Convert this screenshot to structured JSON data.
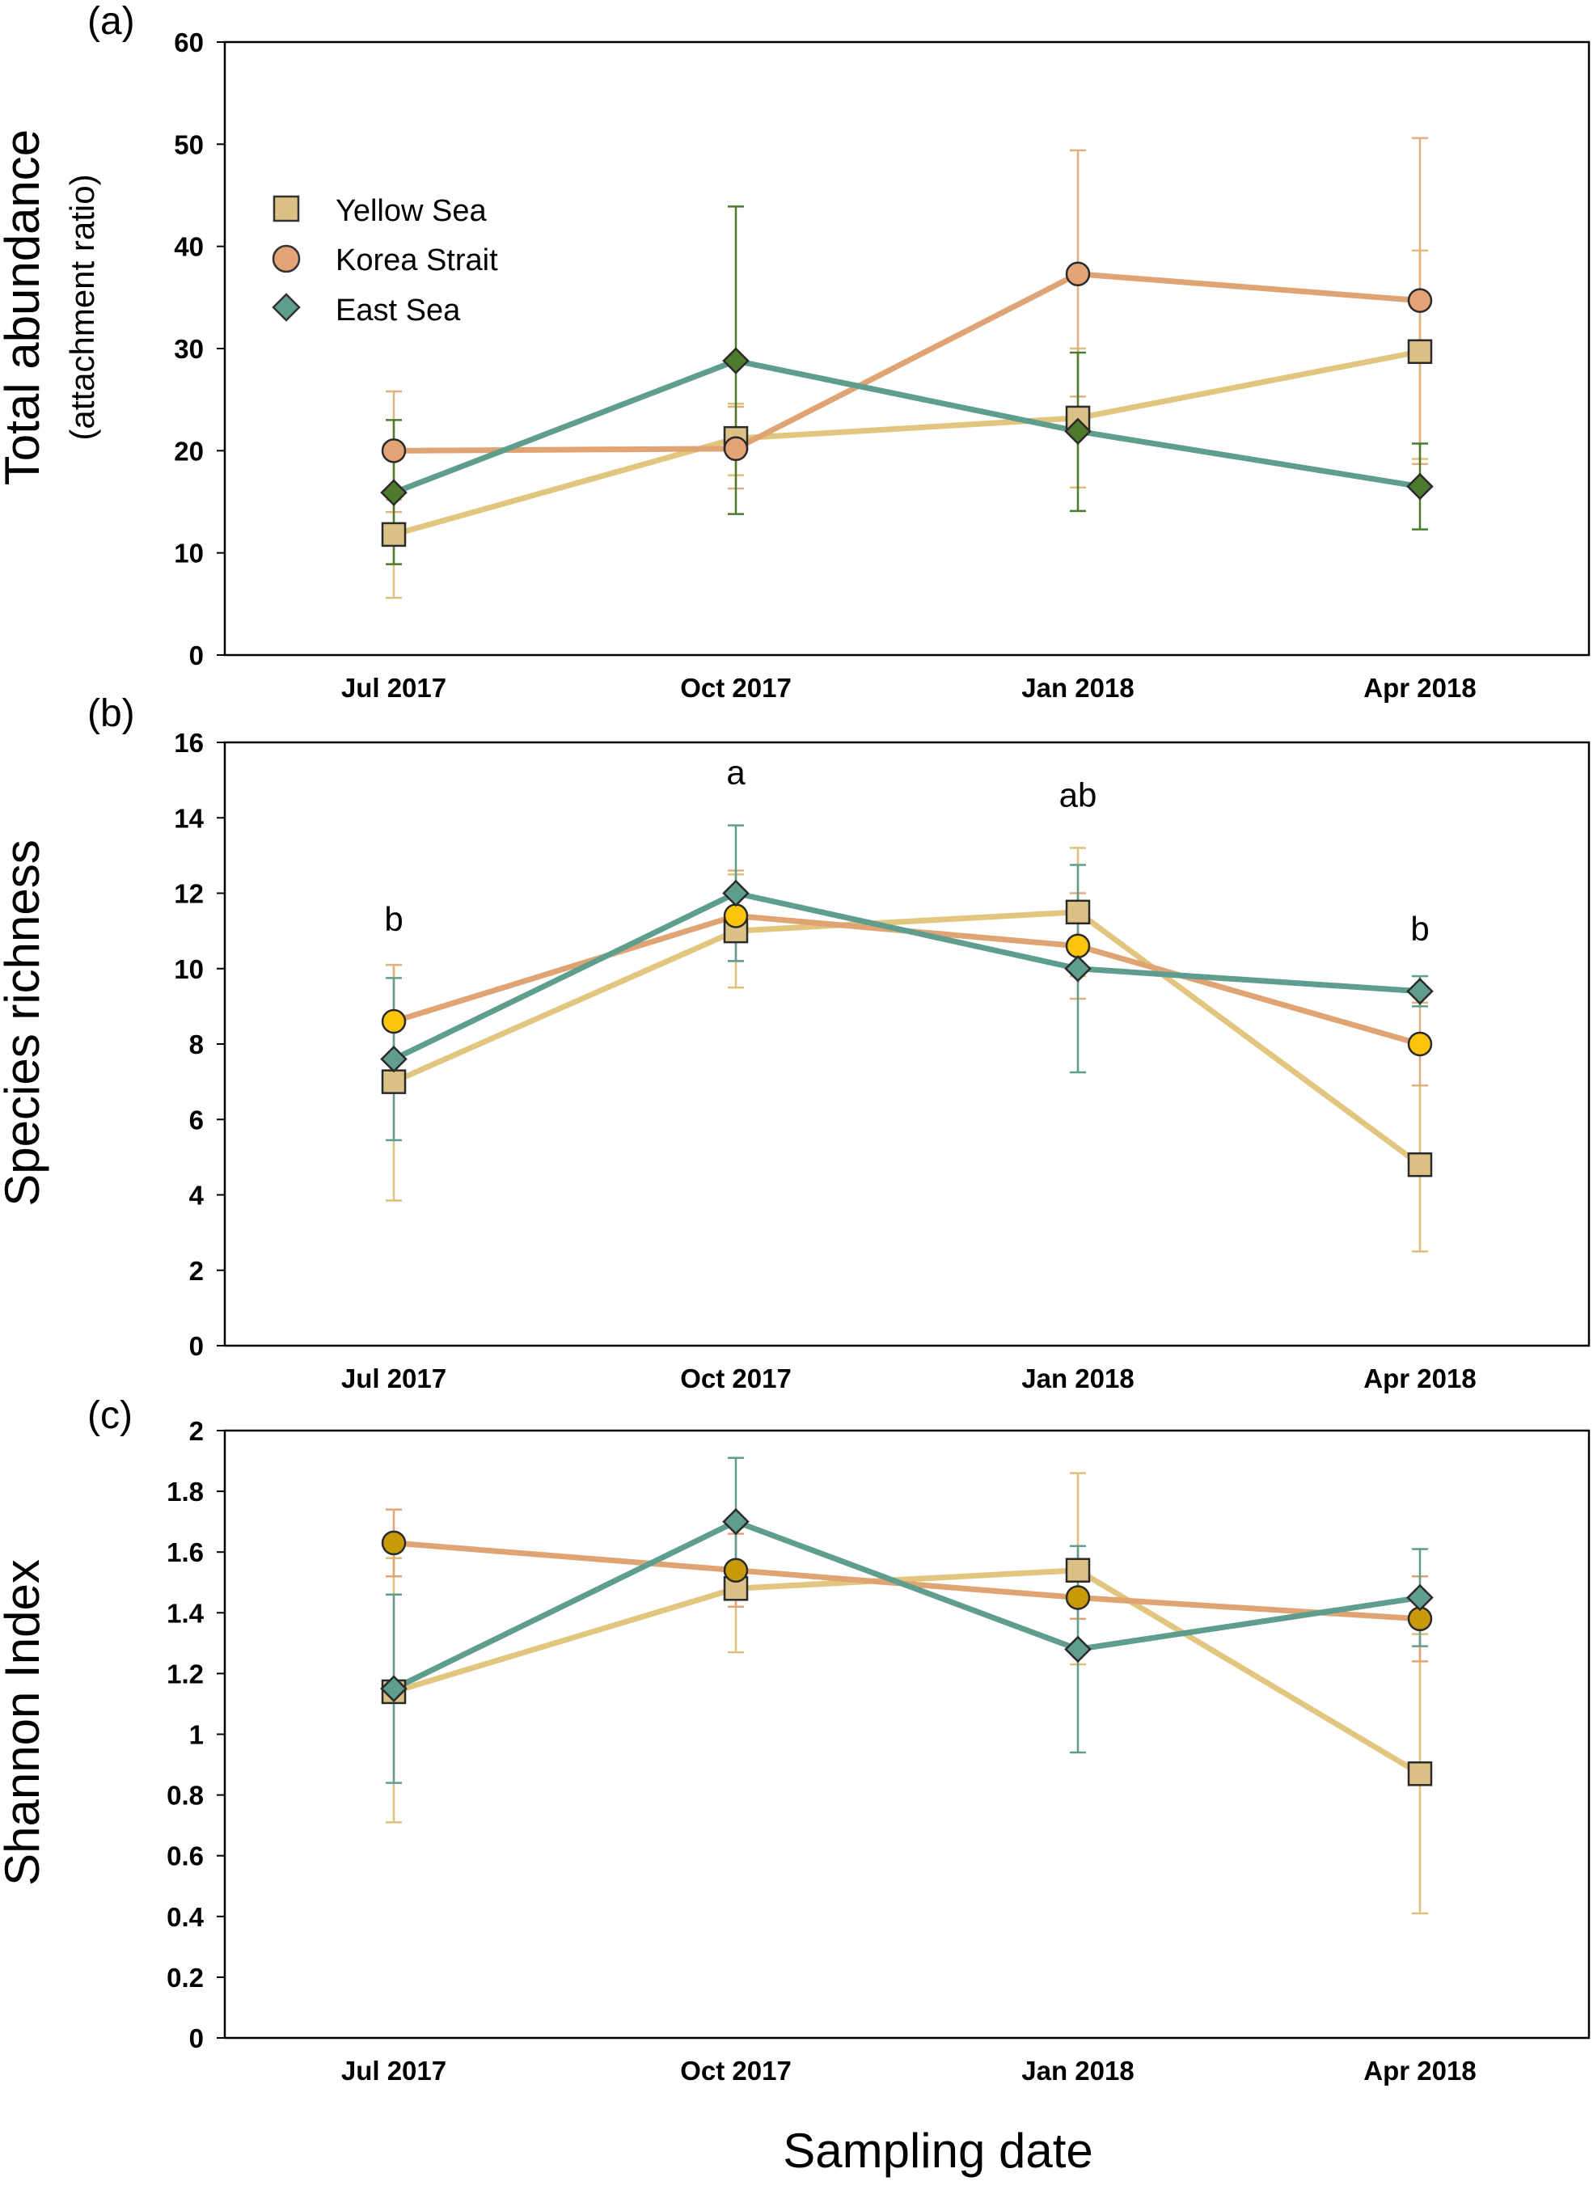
{
  "figure": {
    "x_title": "Sampling date",
    "series_colors": {
      "Yellow Sea": "#e2c57f",
      "Korea Strait": "#e0a474",
      "East Sea": "#5f9e8f"
    },
    "legend": [
      "Yellow Sea",
      "Korea Strait",
      "East Sea"
    ]
  },
  "chart_data": [
    {
      "type": "line",
      "panel_label": "(a)",
      "ylabel": "Total abundance",
      "ylabel_sub": "(attachment ratio)",
      "categories": [
        "Jul 2017",
        "Oct 2017",
        "Jan 2018",
        "Apr 2018"
      ],
      "ylim": [
        0,
        60
      ],
      "yticks": [
        "0",
        "10",
        "20",
        "30",
        "40",
        "50",
        "60"
      ],
      "legend_position": "top-left",
      "series": [
        {
          "name": "Yellow Sea",
          "marker": "square",
          "line_color": "#e2c57f",
          "marker_color": "#dcc187",
          "error_color": "#dcbf7a",
          "values": [
            11.8,
            21.2,
            23.2,
            29.7
          ],
          "err_low": [
            5.6,
            17.6,
            16.4,
            19.2
          ],
          "err_high": [
            15.2,
            24.6,
            30.0,
            39.6
          ]
        },
        {
          "name": "Korea Strait",
          "marker": "circle",
          "line_color": "#e0a474",
          "marker_color": "#e3a376",
          "error_color": "#e0b080",
          "values": [
            20.0,
            20.2,
            37.3,
            34.7
          ],
          "err_low": [
            14.0,
            16.3,
            25.3,
            18.7
          ],
          "err_high": [
            25.8,
            24.3,
            49.4,
            50.6
          ]
        },
        {
          "name": "East Sea",
          "marker": "diamond",
          "line_color": "#5f9e8f",
          "marker_color": "#4d7a2c",
          "error_color": "#4d7a2c",
          "values": [
            15.9,
            28.8,
            21.9,
            16.5
          ],
          "err_low": [
            8.9,
            13.8,
            14.1,
            12.3
          ],
          "err_high": [
            23.0,
            43.9,
            29.6,
            20.7
          ]
        }
      ],
      "annotations": []
    },
    {
      "type": "line",
      "panel_label": "(b)",
      "ylabel": "Species richness",
      "ylabel_sub": "",
      "categories": [
        "Jul 2017",
        "Oct 2017",
        "Jan 2018",
        "Apr 2018"
      ],
      "ylim": [
        0,
        16
      ],
      "yticks": [
        "0",
        "2",
        "4",
        "6",
        "8",
        "10",
        "12",
        "14",
        "16"
      ],
      "series": [
        {
          "name": "Yellow Sea",
          "marker": "square",
          "line_color": "#e2c57f",
          "marker_color": "#dcc187",
          "error_color": "#dcbf7a",
          "values": [
            7.0,
            11.0,
            11.5,
            4.8
          ],
          "err_low": [
            3.85,
            9.5,
            9.8,
            2.5
          ],
          "err_high": [
            10.1,
            12.5,
            13.2,
            6.9
          ]
        },
        {
          "name": "Korea Strait",
          "marker": "circle",
          "line_color": "#e0a474",
          "marker_color": "#fcc40a",
          "error_color": "#e0b080",
          "values": [
            8.6,
            11.4,
            10.6,
            8.0
          ],
          "err_low": [
            7.1,
            10.2,
            9.2,
            6.9
          ],
          "err_high": [
            10.1,
            12.6,
            12.0,
            9.1
          ]
        },
        {
          "name": "East Sea",
          "marker": "diamond",
          "line_color": "#5f9e8f",
          "marker_color": "#5f9e8f",
          "error_color": "#5f9e8f",
          "values": [
            7.6,
            12.0,
            10.0,
            9.4
          ],
          "err_low": [
            5.45,
            10.2,
            7.25,
            9.0
          ],
          "err_high": [
            9.75,
            13.8,
            12.75,
            9.8
          ]
        }
      ],
      "annotations": [
        {
          "category": "Jul 2017",
          "text": "b",
          "y": 11.0
        },
        {
          "category": "Oct 2017",
          "text": "a",
          "y": 14.9
        },
        {
          "category": "Jan 2018",
          "text": "ab",
          "y": 14.3
        },
        {
          "category": "Apr 2018",
          "text": "b",
          "y": 10.75
        }
      ]
    },
    {
      "type": "line",
      "panel_label": "(c)",
      "ylabel": "Shannon Index",
      "ylabel_sub": "",
      "categories": [
        "Jul 2017",
        "Oct 2017",
        "Jan 2018",
        "Apr 2018"
      ],
      "ylim": [
        0,
        2
      ],
      "yticks": [
        "0",
        "0.2",
        "0.4",
        "0.6",
        "0.8",
        "1",
        "1.2",
        "1.4",
        "1.6",
        "1.8",
        "2"
      ],
      "series": [
        {
          "name": "Yellow Sea",
          "marker": "square",
          "line_color": "#e2c57f",
          "marker_color": "#dcc187",
          "error_color": "#dcbf7a",
          "values": [
            1.14,
            1.48,
            1.54,
            0.87
          ],
          "err_low": [
            0.71,
            1.27,
            1.23,
            0.41
          ],
          "err_high": [
            1.58,
            1.68,
            1.86,
            1.33
          ]
        },
        {
          "name": "Korea Strait",
          "marker": "circle",
          "line_color": "#e0a474",
          "marker_color": "#c89a0a",
          "error_color": "#e0a474",
          "values": [
            1.63,
            1.54,
            1.45,
            1.38
          ],
          "err_low": [
            1.52,
            1.42,
            1.38,
            1.24
          ],
          "err_high": [
            1.74,
            1.66,
            1.52,
            1.52
          ]
        },
        {
          "name": "East Sea",
          "marker": "diamond",
          "line_color": "#5f9e8f",
          "marker_color": "#5f9e8f",
          "error_color": "#5f9e8f",
          "values": [
            1.15,
            1.7,
            1.28,
            1.45
          ],
          "err_low": [
            0.84,
            1.49,
            0.94,
            1.29
          ],
          "err_high": [
            1.46,
            1.91,
            1.62,
            1.61
          ]
        }
      ],
      "annotations": []
    }
  ]
}
